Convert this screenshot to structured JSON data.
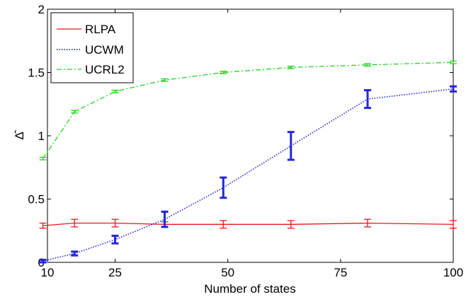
{
  "chart_data": {
    "type": "line",
    "xlabel": "Number of states",
    "ylabel": "Δ̂",
    "xlim": [
      10,
      100
    ],
    "ylim": [
      0,
      2
    ],
    "xticks": [
      10,
      25,
      50,
      75,
      100
    ],
    "yticks": [
      0,
      0.5,
      1,
      1.5,
      2
    ],
    "ytick_labels": [
      "0",
      "0.5",
      "1",
      "1.5",
      "2"
    ],
    "grid": false,
    "legend_position": "top-left",
    "x": [
      9,
      16,
      25,
      36,
      49,
      64,
      81,
      100
    ],
    "series": [
      {
        "name": "RLPA",
        "color": "#e8191c",
        "style": "solid",
        "values": [
          0.29,
          0.31,
          0.31,
          0.3,
          0.3,
          0.3,
          0.31,
          0.3
        ],
        "errors": [
          0.02,
          0.03,
          0.03,
          0.02,
          0.03,
          0.03,
          0.03,
          0.03
        ]
      },
      {
        "name": "UCWM",
        "color": "#2626d9",
        "style": "dotted",
        "values": [
          0.01,
          0.07,
          0.18,
          0.34,
          0.59,
          0.92,
          1.29,
          1.37
        ],
        "errors": [
          0.01,
          0.015,
          0.03,
          0.06,
          0.08,
          0.11,
          0.07,
          0.02
        ]
      },
      {
        "name": "UCRL2",
        "color": "#22d322",
        "style": "dashdot",
        "values": [
          0.82,
          1.19,
          1.35,
          1.44,
          1.5,
          1.54,
          1.56,
          1.58
        ],
        "errors": [
          0.01,
          0.01,
          0.01,
          0.01,
          0.01,
          0.01,
          0.01,
          0.01
        ]
      }
    ]
  }
}
